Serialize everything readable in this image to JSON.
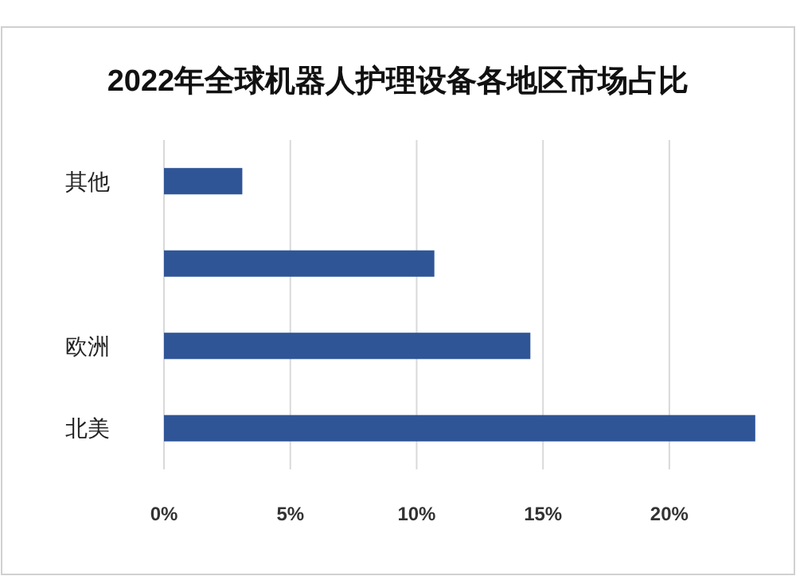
{
  "chart_data": {
    "type": "bar",
    "orientation": "horizontal",
    "title": "2022年全球机器人护理设备各地区市场占比",
    "categories": [
      "其他",
      null,
      "欧洲",
      "北美"
    ],
    "values": [
      3.1,
      10.7,
      14.5,
      23.4
    ],
    "color": "#2f5597",
    "xlim": [
      0,
      23.5
    ],
    "xticks": [
      {
        "value": 0,
        "label": "0%"
      },
      {
        "value": 5,
        "label": "5%"
      },
      {
        "value": 10,
        "label": "10%"
      },
      {
        "value": 15,
        "label": "15%"
      },
      {
        "value": 20,
        "label": "20%"
      }
    ],
    "grid": "x"
  }
}
